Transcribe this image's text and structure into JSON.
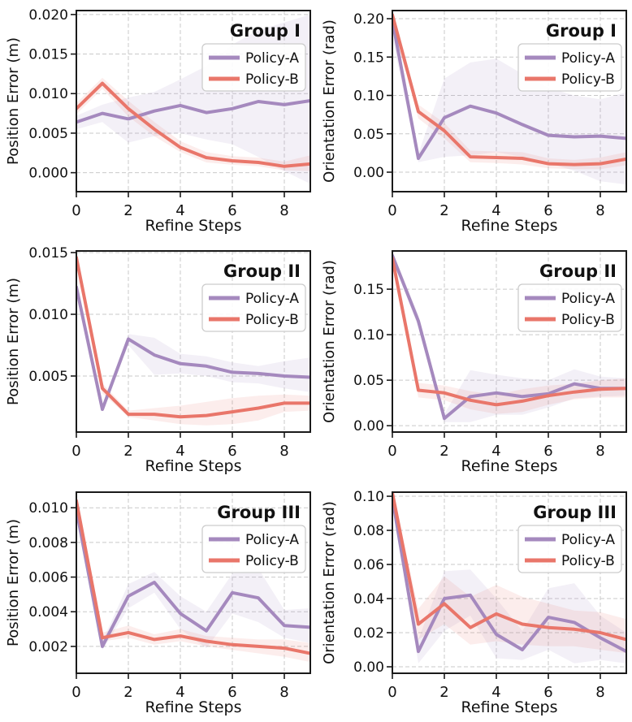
{
  "figure": {
    "background": "#ffffff",
    "text_color": "#111111",
    "grid_color": "#c9c9c9",
    "spine_color": "#1a1a1a",
    "legend_labels": [
      "Policy-A",
      "Policy-B"
    ],
    "colors": {
      "policy_a": "#a589be",
      "policy_b": "#e9766a"
    }
  },
  "chart_data": [
    {
      "id": "group1-position",
      "type": "line",
      "title": "Group I",
      "xlabel": "Refine Steps",
      "ylabel": "Position Error (m)",
      "x": [
        0,
        1,
        2,
        3,
        4,
        5,
        6,
        7,
        8,
        9
      ],
      "xlim": [
        0,
        9
      ],
      "ylim": [
        -0.0024,
        0.0205
      ],
      "xticks": [
        0,
        2,
        4,
        6,
        8
      ],
      "yticks": [
        0.0,
        0.005,
        0.01,
        0.015,
        0.02
      ],
      "ytick_labels": [
        "0.000",
        "0.005",
        "0.010",
        "0.015",
        "0.020"
      ],
      "grid": true,
      "legend_position": "upper-right",
      "series": [
        {
          "name": "Policy-A",
          "color": "#a589be",
          "values": [
            0.0064,
            0.0075,
            0.0068,
            0.0078,
            0.0085,
            0.0076,
            0.0081,
            0.009,
            0.0086,
            0.0091
          ],
          "band_lower": [
            0.0055,
            0.0064,
            0.0038,
            0.0046,
            0.005,
            0.0042,
            0.0036,
            0.002,
            0.0002,
            -0.0014
          ],
          "band_upper": [
            0.0072,
            0.0086,
            0.0095,
            0.0102,
            0.0118,
            0.0135,
            0.0162,
            0.018,
            0.019,
            0.02
          ]
        },
        {
          "name": "Policy-B",
          "color": "#e9766a",
          "values": [
            0.0081,
            0.0113,
            0.0081,
            0.0055,
            0.0032,
            0.0019,
            0.0015,
            0.0013,
            0.0008,
            0.0011
          ],
          "band_lower": [
            0.0074,
            0.0106,
            0.0071,
            0.0046,
            0.0026,
            0.0013,
            0.001,
            0.0008,
            0.0003,
            0.0002
          ],
          "band_upper": [
            0.0088,
            0.012,
            0.0091,
            0.0064,
            0.004,
            0.0026,
            0.0021,
            0.0019,
            0.0014,
            0.0022
          ]
        }
      ]
    },
    {
      "id": "group1-orientation",
      "type": "line",
      "title": "Group I",
      "xlabel": "Refine Steps",
      "ylabel": "Orientation Error (rad)",
      "x": [
        0,
        1,
        2,
        3,
        4,
        5,
        6,
        7,
        8,
        9
      ],
      "xlim": [
        0,
        9
      ],
      "ylim": [
        -0.0254,
        0.2106
      ],
      "xticks": [
        0,
        2,
        4,
        6,
        8
      ],
      "yticks": [
        0.0,
        0.05,
        0.1,
        0.15,
        0.2
      ],
      "ytick_labels": [
        "0.00",
        "0.05",
        "0.10",
        "0.15",
        "0.20"
      ],
      "grid": true,
      "legend_position": "upper-right",
      "series": [
        {
          "name": "Policy-A",
          "color": "#a589be",
          "values": [
            0.198,
            0.018,
            0.071,
            0.086,
            0.077,
            0.062,
            0.048,
            0.046,
            0.047,
            0.044
          ],
          "band_lower": [
            0.175,
            0.013,
            0.02,
            0.022,
            0.026,
            0.02,
            0.012,
            0.002,
            -0.012,
            -0.016
          ],
          "band_upper": [
            0.21,
            0.024,
            0.122,
            0.143,
            0.148,
            0.128,
            0.11,
            0.1,
            0.095,
            0.104
          ]
        },
        {
          "name": "Policy-B",
          "color": "#e9766a",
          "values": [
            0.205,
            0.079,
            0.054,
            0.02,
            0.019,
            0.018,
            0.011,
            0.01,
            0.011,
            0.017
          ],
          "band_lower": [
            0.195,
            0.07,
            0.044,
            0.013,
            0.012,
            0.01,
            0.005,
            0.004,
            0.004,
            0.009
          ],
          "band_upper": [
            0.21,
            0.088,
            0.064,
            0.028,
            0.027,
            0.026,
            0.018,
            0.016,
            0.019,
            0.026
          ]
        }
      ]
    },
    {
      "id": "group2-position",
      "type": "line",
      "title": "Group II",
      "xlabel": "Refine Steps",
      "ylabel": "Position Error (m)",
      "x": [
        0,
        1,
        2,
        3,
        4,
        5,
        6,
        7,
        8,
        9
      ],
      "xlim": [
        0,
        9
      ],
      "ylim": [
        0.00046,
        0.01513
      ],
      "xticks": [
        0,
        2,
        4,
        6,
        8
      ],
      "yticks": [
        0.005,
        0.01,
        0.015
      ],
      "ytick_labels": [
        "0.005",
        "0.010",
        "0.015"
      ],
      "grid": true,
      "legend_position": "upper-right",
      "series": [
        {
          "name": "Policy-A",
          "color": "#a589be",
          "values": [
            0.0122,
            0.0023,
            0.008,
            0.0067,
            0.006,
            0.0058,
            0.0053,
            0.0052,
            0.005,
            0.0049
          ],
          "band_lower": [
            0.0118,
            0.0021,
            0.0075,
            0.0051,
            0.0052,
            0.005,
            0.0045,
            0.0044,
            0.004,
            0.0037
          ],
          "band_upper": [
            0.0126,
            0.0026,
            0.0084,
            0.0081,
            0.0068,
            0.0066,
            0.0061,
            0.0058,
            0.0062,
            0.0065
          ]
        },
        {
          "name": "Policy-B",
          "color": "#e9766a",
          "values": [
            0.0146,
            0.004,
            0.0019,
            0.0019,
            0.0017,
            0.0018,
            0.0021,
            0.0024,
            0.0028,
            0.0028
          ],
          "band_lower": [
            0.0142,
            0.0036,
            0.0017,
            0.0014,
            0.0011,
            0.001,
            0.0011,
            0.0014,
            0.0021,
            0.0022
          ],
          "band_upper": [
            0.015,
            0.0044,
            0.0022,
            0.0024,
            0.0026,
            0.0029,
            0.0032,
            0.0034,
            0.0035,
            0.0034
          ]
        }
      ]
    },
    {
      "id": "group2-orientation",
      "type": "line",
      "title": "Group II",
      "xlabel": "Refine Steps",
      "ylabel": "Orientation Error (rad)",
      "x": [
        0,
        1,
        2,
        3,
        4,
        5,
        6,
        7,
        8,
        9
      ],
      "xlim": [
        0,
        9
      ],
      "ylim": [
        -0.007,
        0.192
      ],
      "xticks": [
        0,
        2,
        4,
        6,
        8
      ],
      "yticks": [
        0.0,
        0.05,
        0.1,
        0.15
      ],
      "ytick_labels": [
        "0.00",
        "0.05",
        "0.10",
        "0.15"
      ],
      "grid": true,
      "legend_position": "upper-right",
      "series": [
        {
          "name": "Policy-A",
          "color": "#a589be",
          "values": [
            0.187,
            0.115,
            0.008,
            0.032,
            0.036,
            0.032,
            0.035,
            0.046,
            0.041,
            0.041
          ],
          "band_lower": [
            0.183,
            0.108,
            0.004,
            0.004,
            0.012,
            0.012,
            0.02,
            0.03,
            0.032,
            0.033
          ],
          "band_upper": [
            0.191,
            0.122,
            0.013,
            0.061,
            0.056,
            0.052,
            0.05,
            0.062,
            0.054,
            0.052
          ]
        },
        {
          "name": "Policy-B",
          "color": "#e9766a",
          "values": [
            0.184,
            0.039,
            0.036,
            0.028,
            0.023,
            0.027,
            0.033,
            0.037,
            0.04,
            0.041
          ],
          "band_lower": [
            0.18,
            0.031,
            0.028,
            0.018,
            0.013,
            0.015,
            0.023,
            0.029,
            0.031,
            0.031
          ],
          "band_upper": [
            0.188,
            0.047,
            0.044,
            0.038,
            0.034,
            0.04,
            0.044,
            0.046,
            0.05,
            0.052
          ]
        }
      ]
    },
    {
      "id": "group3-position",
      "type": "line",
      "title": "Group III",
      "xlabel": "Refine Steps",
      "ylabel": "Position Error (m)",
      "x": [
        0,
        1,
        2,
        3,
        4,
        5,
        6,
        7,
        8,
        9
      ],
      "xlim": [
        0,
        9
      ],
      "ylim": [
        0.00045,
        0.0109
      ],
      "xticks": [
        0,
        2,
        4,
        6,
        8
      ],
      "yticks": [
        0.002,
        0.004,
        0.006,
        0.008,
        0.01
      ],
      "ytick_labels": [
        "0.002",
        "0.004",
        "0.006",
        "0.008",
        "0.010"
      ],
      "grid": true,
      "legend_position": "upper-right",
      "series": [
        {
          "name": "Policy-A",
          "color": "#a589be",
          "values": [
            0.0099,
            0.002,
            0.0049,
            0.0057,
            0.0039,
            0.0029,
            0.0051,
            0.0048,
            0.0032,
            0.0031
          ],
          "band_lower": [
            0.0097,
            0.0018,
            0.0042,
            0.0051,
            0.003,
            0.0019,
            0.0039,
            0.0034,
            0.0025,
            0.0022
          ],
          "band_upper": [
            0.0101,
            0.0023,
            0.0056,
            0.0063,
            0.0049,
            0.004,
            0.0062,
            0.0065,
            0.0041,
            0.0042
          ]
        },
        {
          "name": "Policy-B",
          "color": "#e9766a",
          "values": [
            0.0104,
            0.0025,
            0.0028,
            0.0024,
            0.0026,
            0.0023,
            0.0021,
            0.002,
            0.0019,
            0.0016
          ],
          "band_lower": [
            0.0102,
            0.0023,
            0.0025,
            0.0021,
            0.0023,
            0.002,
            0.0018,
            0.0016,
            0.0014,
            0.0011
          ],
          "band_upper": [
            0.0106,
            0.0028,
            0.0032,
            0.0027,
            0.003,
            0.0026,
            0.0025,
            0.0024,
            0.0024,
            0.0022
          ]
        }
      ]
    },
    {
      "id": "group3-orientation",
      "type": "line",
      "title": "Group III",
      "xlabel": "Refine Steps",
      "ylabel": "Orientation Error (rad)",
      "x": [
        0,
        1,
        2,
        3,
        4,
        5,
        6,
        7,
        8,
        9
      ],
      "xlim": [
        0,
        9
      ],
      "ylim": [
        -0.0038,
        0.1024
      ],
      "xticks": [
        0,
        2,
        4,
        6,
        8
      ],
      "yticks": [
        0.0,
        0.02,
        0.04,
        0.06,
        0.08,
        0.1
      ],
      "ytick_labels": [
        "0.00",
        "0.02",
        "0.04",
        "0.06",
        "0.08",
        "0.10"
      ],
      "grid": true,
      "legend_position": "upper-right",
      "series": [
        {
          "name": "Policy-A",
          "color": "#a589be",
          "values": [
            0.099,
            0.009,
            0.04,
            0.042,
            0.019,
            0.01,
            0.029,
            0.026,
            0.017,
            0.009
          ],
          "band_lower": [
            0.097,
            0.002,
            0.021,
            0.03,
            0.005,
            0.004,
            0.01,
            0.002,
            0.004,
            0.002
          ],
          "band_upper": [
            0.101,
            0.016,
            0.056,
            0.057,
            0.04,
            0.021,
            0.046,
            0.049,
            0.03,
            0.02
          ]
        },
        {
          "name": "Policy-B",
          "color": "#e9766a",
          "values": [
            0.102,
            0.025,
            0.037,
            0.023,
            0.031,
            0.025,
            0.023,
            0.022,
            0.02,
            0.016
          ],
          "band_lower": [
            0.1,
            0.016,
            0.025,
            0.013,
            0.015,
            0.013,
            0.012,
            0.012,
            0.01,
            0.008
          ],
          "band_upper": [
            0.104,
            0.034,
            0.053,
            0.041,
            0.048,
            0.041,
            0.037,
            0.033,
            0.032,
            0.028
          ]
        }
      ]
    }
  ]
}
